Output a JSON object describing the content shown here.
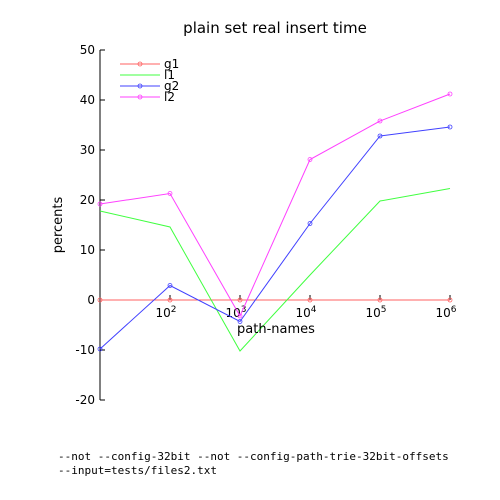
{
  "chart_data": {
    "type": "line",
    "title": "plain set real insert time",
    "xlabel": "path-names",
    "ylabel": "percents",
    "x_scale": "log",
    "x": [
      10,
      100,
      1000,
      10000,
      100000,
      1000000
    ],
    "x_tick_labels": [
      {
        "base": "10",
        "exp": "2"
      },
      {
        "base": "10",
        "exp": "3"
      },
      {
        "base": "10",
        "exp": "4"
      },
      {
        "base": "10",
        "exp": "5"
      },
      {
        "base": "10",
        "exp": "6"
      }
    ],
    "x_tick_values": [
      100,
      1000,
      10000,
      100000,
      1000000
    ],
    "xlim": [
      10,
      1000000
    ],
    "ylim": [
      -20,
      50
    ],
    "y_ticks": [
      -20,
      -10,
      0,
      10,
      20,
      30,
      40,
      50
    ],
    "grid": false,
    "legend_position": "top-left",
    "series": [
      {
        "name": "g1",
        "color": "#ff6060",
        "marker": "circle",
        "values": [
          0,
          0,
          0,
          0,
          0,
          0
        ]
      },
      {
        "name": "l1",
        "color": "#40ff40",
        "marker": "none",
        "values": [
          17.8,
          14.6,
          -10.2,
          5.0,
          19.8,
          22.3
        ]
      },
      {
        "name": "g2",
        "color": "#4040ff",
        "marker": "circle",
        "values": [
          -9.8,
          2.9,
          -4.3,
          15.3,
          32.8,
          34.6
        ]
      },
      {
        "name": "l2",
        "color": "#ff40ff",
        "marker": "circle",
        "values": [
          19.2,
          21.3,
          -3.2,
          28.1,
          35.8,
          41.2
        ]
      }
    ]
  },
  "footer": {
    "line1": "--not --config-32bit --not --config-path-trie-32bit-offsets",
    "line2": "--input=tests/files2.txt"
  }
}
